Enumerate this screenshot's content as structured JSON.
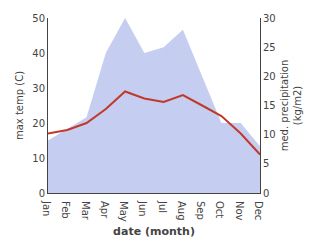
{
  "chart_data": {
    "type": "line",
    "xlabel": "date (month)",
    "ylabel": "max temp (C)",
    "y2label": "med. precipitation\n(kg/m2)",
    "categories": [
      "Jan",
      "Feb",
      "Mar",
      "Apr",
      "May",
      "Jun",
      "Jul",
      "Aug",
      "Sep",
      "Oct",
      "Nov",
      "Dec"
    ],
    "series": [
      {
        "type": "area",
        "axis": "y2",
        "color": "#c5cef0",
        "values": [
          9,
          11,
          13,
          24,
          30,
          24,
          25,
          28,
          20,
          12,
          12,
          8
        ]
      },
      {
        "type": "line",
        "color": "#c0392b",
        "values": [
          17,
          18,
          20,
          24,
          29,
          27,
          26,
          28,
          25,
          22,
          17,
          11
        ]
      }
    ],
    "ylim": [
      0,
      50
    ],
    "yticks": [
      0,
      10,
      20,
      30,
      40,
      50
    ],
    "y2lim": [
      0,
      30
    ],
    "y2ticks": [
      0,
      5,
      10,
      15,
      20,
      25,
      30
    ],
    "grid": false
  }
}
